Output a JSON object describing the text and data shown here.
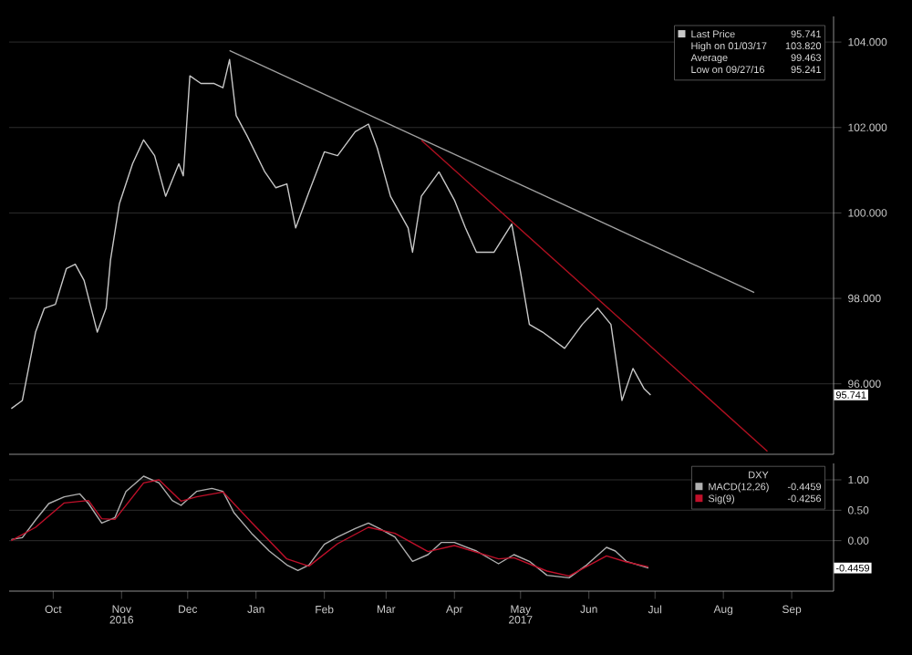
{
  "chart_data": [
    {
      "type": "line",
      "xlim": [
        "2016-09-25",
        "2017-10-04"
      ],
      "ylim": [
        94.35,
        104.6
      ],
      "yticks": [
        {
          "value": 96,
          "label": "96.000"
        },
        {
          "value": 98,
          "label": "98.000"
        },
        {
          "value": 100,
          "label": "100.000"
        },
        {
          "value": 102,
          "label": "102.000"
        },
        {
          "value": 104,
          "label": "104.000"
        }
      ],
      "tick_labels": "y",
      "grid": "y",
      "legend": "top right",
      "series": [
        {
          "name": "Last Price",
          "color": "#c8c8c8",
          "x": [
            "2016-09-26",
            "2016-10-01",
            "2016-10-07",
            "2016-10-11",
            "2016-10-16",
            "2016-10-21",
            "2016-10-25",
            "2016-10-29",
            "2016-11-04",
            "2016-11-08",
            "2016-11-10",
            "2016-11-14",
            "2016-11-20",
            "2016-11-25",
            "2016-11-30",
            "2016-12-05",
            "2016-12-11",
            "2016-12-13",
            "2016-12-16",
            "2016-12-21",
            "2016-12-27",
            "2016-12-31",
            "2017-01-03",
            "2017-01-06",
            "2017-01-11",
            "2017-01-19",
            "2017-01-24",
            "2017-01-29",
            "2017-02-02",
            "2017-02-08",
            "2017-02-15",
            "2017-02-21",
            "2017-03-01",
            "2017-03-07",
            "2017-03-11",
            "2017-03-17",
            "2017-03-25",
            "2017-03-27",
            "2017-03-31",
            "2017-04-08",
            "2017-04-15",
            "2017-04-20",
            "2017-04-25",
            "2017-05-03",
            "2017-05-11",
            "2017-05-15",
            "2017-05-19",
            "2017-05-25",
            "2017-06-04",
            "2017-06-12",
            "2017-06-19",
            "2017-06-25",
            "2017-06-30",
            "2017-07-05",
            "2017-07-10",
            "2017-07-13"
          ],
          "values": [
            95.42,
            95.61,
            97.21,
            97.77,
            97.86,
            98.7,
            98.8,
            98.42,
            97.21,
            97.77,
            98.9,
            100.21,
            101.15,
            101.71,
            101.34,
            100.39,
            101.15,
            100.87,
            103.21,
            103.03,
            103.03,
            102.93,
            103.59,
            102.28,
            101.8,
            100.96,
            100.59,
            100.68,
            99.65,
            100.49,
            101.43,
            101.34,
            101.9,
            102.08,
            101.52,
            100.39,
            99.65,
            99.08,
            100.39,
            100.96,
            100.3,
            99.65,
            99.08,
            99.08,
            99.74,
            98.61,
            97.39,
            97.21,
            96.83,
            97.39,
            97.77,
            97.39,
            95.61,
            96.36,
            95.89,
            95.74
          ]
        },
        {
          "color": "#a0a0a0",
          "x": [
            "2017-01-03",
            "2017-08-29"
          ],
          "values": [
            103.8,
            98.14
          ]
        },
        {
          "color": "#b01020",
          "x": [
            "2017-03-31",
            "2017-09-04"
          ],
          "values": [
            101.7,
            94.42
          ]
        }
      ],
      "annotations": [
        "95.741",
        "High on 01/03/17",
        "103.820",
        "Average",
        "99.463",
        "Low on 09/27/16",
        "95.241",
        "95.741"
      ]
    },
    {
      "type": "line",
      "xlim": [
        "2016-09-25",
        "2017-10-04"
      ],
      "ylim": [
        -0.83,
        1.27
      ],
      "yticks": [
        {
          "value": 1,
          "label": "1.00"
        },
        {
          "value": 0.5,
          "label": "0.50"
        },
        {
          "value": 0,
          "label": "0.00"
        }
      ],
      "xticks": [
        {
          "value": "2016-10-15",
          "label": "Oct"
        },
        {
          "value": "2016-11-15",
          "label": "Nov"
        },
        {
          "value": "2016-12-15",
          "label": "Dec"
        },
        {
          "value": "2017-01-15",
          "label": "Jan"
        },
        {
          "value": "2017-02-15",
          "label": "Feb"
        },
        {
          "value": "2017-03-15",
          "label": "Mar"
        },
        {
          "value": "2017-04-15",
          "label": "Apr"
        },
        {
          "value": "2017-05-15",
          "label": "May"
        },
        {
          "value": "2017-06-15",
          "label": "Jun"
        },
        {
          "value": "2017-07-15",
          "label": "Jul"
        },
        {
          "value": "2017-08-15",
          "label": "Aug"
        },
        {
          "value": "2017-09-15",
          "label": "Sep"
        }
      ],
      "x2lim": [
        "2016-09-25",
        "2017-10-04"
      ],
      "x2ticks": [
        {
          "value": "2016-11-15",
          "label": "2016"
        },
        {
          "value": "2017-05-15",
          "label": "2017"
        }
      ],
      "grid": "y",
      "legend": "top right",
      "legend_title": "DXY",
      "series": [
        {
          "name": "MACD(12,26)",
          "color": "#b0b0b0",
          "x": [
            "2016-09-26",
            "2016-10-01",
            "2016-10-07",
            "2016-10-13",
            "2016-10-20",
            "2016-10-27",
            "2016-10-31",
            "2016-11-06",
            "2016-11-12",
            "2016-11-17",
            "2016-11-25",
            "2016-12-02",
            "2016-12-08",
            "2016-12-12",
            "2016-12-19",
            "2016-12-26",
            "2016-12-31",
            "2017-01-05",
            "2017-01-13",
            "2017-01-21",
            "2017-01-29",
            "2017-02-03",
            "2017-02-08",
            "2017-02-15",
            "2017-02-21",
            "2017-03-01",
            "2017-03-07",
            "2017-03-12",
            "2017-03-19",
            "2017-03-27",
            "2017-04-03",
            "2017-04-09",
            "2017-04-15",
            "2017-04-25",
            "2017-05-05",
            "2017-05-12",
            "2017-05-19",
            "2017-05-27",
            "2017-06-06",
            "2017-06-14",
            "2017-06-23",
            "2017-06-27",
            "2017-07-02",
            "2017-07-12"
          ],
          "values": [
            0.02,
            0.05,
            0.34,
            0.61,
            0.72,
            0.77,
            0.61,
            0.29,
            0.38,
            0.81,
            1.06,
            0.95,
            0.66,
            0.58,
            0.81,
            0.86,
            0.81,
            0.46,
            0.12,
            -0.17,
            -0.4,
            -0.49,
            -0.4,
            -0.06,
            0.06,
            0.2,
            0.29,
            0.2,
            0.06,
            -0.34,
            -0.23,
            -0.03,
            -0.03,
            -0.17,
            -0.38,
            -0.23,
            -0.34,
            -0.57,
            -0.61,
            -0.4,
            -0.11,
            -0.17,
            -0.34,
            -0.45
          ]
        },
        {
          "name": "Sig(9)",
          "color": "#c0102a",
          "x": [
            "2016-09-26",
            "2016-10-07",
            "2016-10-20",
            "2016-10-31",
            "2016-11-06",
            "2016-11-12",
            "2016-11-25",
            "2016-12-02",
            "2016-12-12",
            "2016-12-19",
            "2016-12-31",
            "2017-01-13",
            "2017-01-29",
            "2017-02-08",
            "2017-02-21",
            "2017-03-07",
            "2017-03-19",
            "2017-04-03",
            "2017-04-15",
            "2017-05-05",
            "2017-05-12",
            "2017-05-27",
            "2017-06-06",
            "2017-06-23",
            "2017-07-02",
            "2017-07-12"
          ],
          "values": [
            0.0,
            0.22,
            0.62,
            0.66,
            0.36,
            0.35,
            0.95,
            1.0,
            0.65,
            0.72,
            0.8,
            0.3,
            -0.3,
            -0.42,
            -0.05,
            0.22,
            0.12,
            -0.18,
            -0.08,
            -0.3,
            -0.28,
            -0.5,
            -0.58,
            -0.25,
            -0.35,
            -0.43
          ]
        }
      ],
      "annotations": [
        "-0.4459",
        "-0.4256",
        "-0.4459"
      ]
    }
  ]
}
